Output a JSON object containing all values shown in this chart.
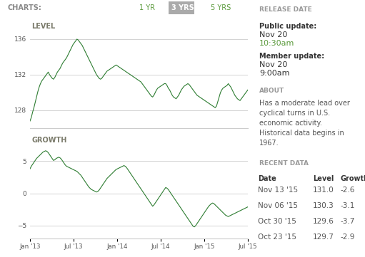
{
  "chart_header_bg": "#e8e8e8",
  "chart_header_text": "CHARTS:",
  "chart_header_color": "#888888",
  "btn_1yr_text": "1 YR",
  "btn_3yrs_text": "3 YRS",
  "btn_5yrs_text": "5 YRS",
  "btn_active_bg": "#aaaaaa",
  "btn_active_text": "#ffffff",
  "btn_inactive_text": "#5b9a3c",
  "level_label": "LEVEL",
  "growth_label": "GROWTH",
  "label_color": "#7a7a6a",
  "line_color": "#2e7d32",
  "grid_color": "#cccccc",
  "bg_color": "#ffffff",
  "panel_bg": "#f5f5f5",
  "right_panel_bg": "#ffffff",
  "divider_color": "#dddddd",
  "section_header_bg": "#e5e5e5",
  "section_header_color": "#999999",
  "body_text_color": "#333333",
  "highlight_color": "#5b9a3c",
  "level_yticks": [
    128,
    132,
    136
  ],
  "level_ylim": [
    126,
    138
  ],
  "growth_yticks": [
    -5,
    0,
    5
  ],
  "growth_ylim": [
    -7,
    9
  ],
  "xtick_labels": [
    "Jan '13",
    "Jul '13",
    "Jan '14",
    "Jul '14",
    "Jan '15",
    "Jul '15"
  ],
  "release_date_title": "RELEASE DATE",
  "public_update_label": "Public update:",
  "public_update_date": "Nov 20",
  "public_update_time": "10:30am",
  "member_update_label": "Member update:",
  "member_update_date": "Nov 20",
  "member_update_time": "9:00am",
  "about_title": "ABOUT",
  "about_text": "Has a moderate lead over\ncyclical turns in U.S.\neconomic activity.\nHistorical data begins in\n1967.",
  "recent_data_title": "RECENT DATA",
  "recent_data_headers": [
    "Date",
    "Level",
    "Growth"
  ],
  "recent_data": [
    [
      "Nov 13 '15",
      "131.0",
      "-2.6"
    ],
    [
      "Nov 06 '15",
      "130.3",
      "-3.1"
    ],
    [
      "Oct 30 '15",
      "129.6",
      "-3.7"
    ],
    [
      "Oct 23 '15",
      "129.7",
      "-2.9"
    ]
  ],
  "level_data": [
    126.8,
    127.2,
    127.8,
    128.3,
    128.9,
    129.5,
    130.1,
    130.6,
    131.0,
    131.3,
    131.5,
    131.7,
    131.9,
    132.1,
    132.3,
    132.0,
    131.8,
    131.6,
    131.5,
    131.7,
    132.0,
    132.3,
    132.5,
    132.7,
    133.0,
    133.3,
    133.5,
    133.7,
    133.9,
    134.2,
    134.5,
    134.8,
    135.1,
    135.4,
    135.6,
    135.8,
    136.0,
    135.9,
    135.7,
    135.5,
    135.3,
    135.0,
    134.7,
    134.4,
    134.1,
    133.8,
    133.5,
    133.2,
    132.9,
    132.6,
    132.3,
    132.0,
    131.8,
    131.6,
    131.5,
    131.6,
    131.8,
    132.0,
    132.2,
    132.4,
    132.5,
    132.6,
    132.7,
    132.8,
    132.9,
    133.0,
    133.1,
    133.0,
    132.9,
    132.8,
    132.7,
    132.6,
    132.5,
    132.4,
    132.3,
    132.2,
    132.1,
    132.0,
    131.9,
    131.8,
    131.7,
    131.6,
    131.5,
    131.4,
    131.3,
    131.2,
    131.0,
    130.8,
    130.6,
    130.4,
    130.2,
    130.0,
    129.8,
    129.6,
    129.5,
    129.7,
    130.0,
    130.3,
    130.5,
    130.6,
    130.7,
    130.8,
    130.9,
    131.0,
    131.0,
    130.8,
    130.5,
    130.3,
    130.0,
    129.7,
    129.5,
    129.4,
    129.3,
    129.5,
    129.7,
    130.0,
    130.3,
    130.5,
    130.7,
    130.8,
    130.9,
    131.0,
    130.9,
    130.7,
    130.5,
    130.3,
    130.1,
    129.9,
    129.7,
    129.6,
    129.5,
    129.4,
    129.3,
    129.2,
    129.1,
    129.0,
    128.9,
    128.8,
    128.7,
    128.6,
    128.5,
    128.4,
    128.3,
    128.5,
    129.0,
    129.5,
    130.0,
    130.3,
    130.5,
    130.6,
    130.7,
    130.8,
    131.0,
    130.8,
    130.6,
    130.3,
    130.0,
    129.7,
    129.5,
    129.3,
    129.2,
    129.1,
    129.3,
    129.5,
    129.7,
    129.9,
    130.1,
    130.3
  ],
  "growth_data": [
    3.8,
    4.2,
    4.5,
    4.8,
    5.1,
    5.4,
    5.6,
    5.8,
    6.0,
    6.2,
    6.4,
    6.5,
    6.6,
    6.5,
    6.3,
    6.0,
    5.7,
    5.4,
    5.1,
    5.2,
    5.4,
    5.5,
    5.6,
    5.5,
    5.3,
    5.0,
    4.7,
    4.4,
    4.2,
    4.1,
    4.0,
    3.9,
    3.8,
    3.7,
    3.6,
    3.5,
    3.4,
    3.2,
    3.0,
    2.8,
    2.5,
    2.2,
    1.9,
    1.6,
    1.3,
    1.0,
    0.8,
    0.6,
    0.5,
    0.4,
    0.3,
    0.2,
    0.3,
    0.5,
    0.8,
    1.1,
    1.4,
    1.7,
    2.0,
    2.3,
    2.5,
    2.7,
    2.9,
    3.1,
    3.3,
    3.5,
    3.7,
    3.8,
    3.9,
    4.0,
    4.1,
    4.2,
    4.3,
    4.2,
    4.0,
    3.7,
    3.4,
    3.1,
    2.8,
    2.5,
    2.2,
    1.9,
    1.6,
    1.3,
    1.0,
    0.7,
    0.4,
    0.1,
    -0.2,
    -0.5,
    -0.8,
    -1.1,
    -1.4,
    -1.7,
    -2.0,
    -1.8,
    -1.5,
    -1.2,
    -0.9,
    -0.6,
    -0.3,
    0.0,
    0.3,
    0.6,
    0.9,
    0.8,
    0.6,
    0.3,
    0.0,
    -0.3,
    -0.6,
    -0.9,
    -1.2,
    -1.5,
    -1.8,
    -2.1,
    -2.4,
    -2.7,
    -3.0,
    -3.3,
    -3.6,
    -3.9,
    -4.2,
    -4.5,
    -4.8,
    -5.1,
    -5.2,
    -5.0,
    -4.7,
    -4.4,
    -4.1,
    -3.8,
    -3.5,
    -3.2,
    -2.9,
    -2.6,
    -2.3,
    -2.0,
    -1.8,
    -1.6,
    -1.5,
    -1.6,
    -1.8,
    -2.0,
    -2.2,
    -2.4,
    -2.6,
    -2.8,
    -3.0,
    -3.2,
    -3.4,
    -3.5,
    -3.6,
    -3.5,
    -3.4,
    -3.3,
    -3.2,
    -3.1,
    -3.0,
    -2.9,
    -2.8,
    -2.7,
    -2.6,
    -2.5,
    -2.4,
    -2.3,
    -2.2,
    -2.1
  ]
}
